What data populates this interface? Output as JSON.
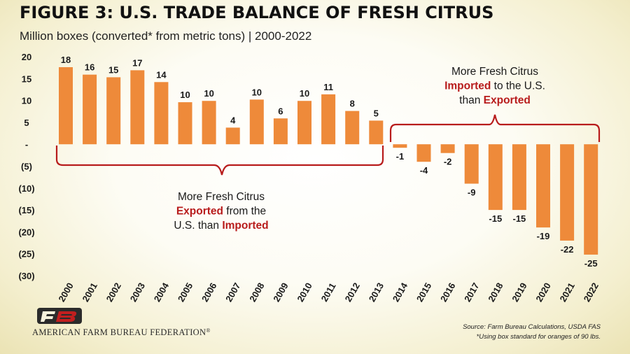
{
  "chart_data": {
    "type": "bar",
    "title": "FIGURE 3: U.S. TRADE BALANCE OF FRESH CITRUS",
    "subtitle": "Million boxes (converted* from metric tons) | 2000-2022",
    "categories": [
      "2000",
      "2001",
      "2002",
      "2003",
      "2004",
      "2005",
      "2006",
      "2007",
      "2008",
      "2009",
      "2010",
      "2011",
      "2012",
      "2013",
      "2014",
      "2015",
      "2016",
      "2017",
      "2018",
      "2019",
      "2020",
      "2021",
      "2022"
    ],
    "values": [
      17.6,
      15.9,
      15.3,
      16.9,
      14.2,
      9.6,
      9.9,
      3.8,
      10.2,
      5.9,
      9.9,
      11.4,
      7.6,
      5.4,
      -0.8,
      -4.0,
      -2.0,
      -9.0,
      -15.0,
      -15.0,
      -19.0,
      -22.0,
      -25.2
    ],
    "data_labels": [
      "18",
      "16",
      "15",
      "17",
      "14",
      "10",
      "10",
      "4",
      "10",
      "6",
      "10",
      "11",
      "8",
      "5",
      "-1",
      "-4",
      "-2",
      "-9",
      "-15",
      "-15",
      "-19",
      "-22",
      "-25"
    ],
    "ylim": [
      -30,
      20
    ],
    "yticks": [
      20,
      15,
      10,
      5,
      0,
      -5,
      -10,
      -15,
      -20,
      -25,
      -30
    ],
    "ytick_labels": [
      "20",
      "15",
      "10",
      "5",
      "-",
      "(5)",
      "(10)",
      "(15)",
      "(20)",
      "(25)",
      "(30)"
    ],
    "xlabel": "",
    "ylabel": "",
    "bar_color": "#ee8a3a",
    "accent_color": "#b81c1c",
    "annotations": [
      {
        "id": "exported",
        "lines": [
          [
            {
              "text": "More Fresh Citrus",
              "emphasis": false
            }
          ],
          [
            {
              "text": "Exported",
              "emphasis": true
            },
            {
              "text": " from the",
              "emphasis": false
            }
          ],
          [
            {
              "text": "U.S.  than ",
              "emphasis": false
            },
            {
              "text": "Imported",
              "emphasis": true
            }
          ]
        ]
      },
      {
        "id": "imported",
        "lines": [
          [
            {
              "text": "More Fresh Citrus",
              "emphasis": false
            }
          ],
          [
            {
              "text": "Imported",
              "emphasis": true
            },
            {
              "text": " to the U.S.",
              "emphasis": false
            }
          ],
          [
            {
              "text": "than ",
              "emphasis": false
            },
            {
              "text": "Exported",
              "emphasis": true
            }
          ]
        ]
      }
    ]
  },
  "branding": {
    "organization": "AMERICAN FARM BUREAU FEDERATION",
    "registered_mark": "®"
  },
  "footer": {
    "source": "Source: Farm Bureau Calculations, USDA FAS",
    "note": "*Using box standard for oranges of 90 lbs."
  }
}
